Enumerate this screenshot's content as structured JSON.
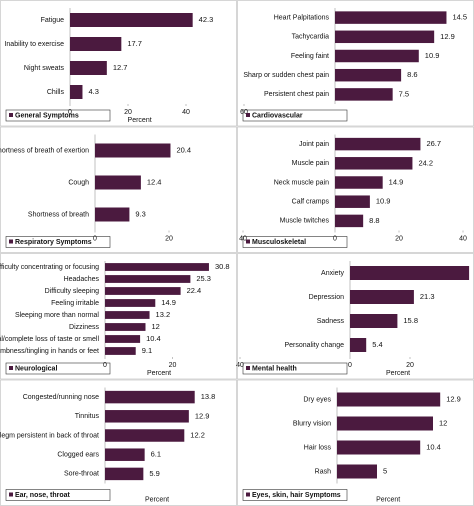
{
  "chart_data": [
    {
      "type": "bar",
      "horizontal": true,
      "title": "General Symptoms",
      "categories": [
        "Fatigue",
        "Inability to exercise",
        "Night sweats",
        "Chills"
      ],
      "values": [
        42.3,
        17.7,
        12.7,
        4.3
      ],
      "color": "#4b1a3f",
      "xlim": [
        0,
        60
      ],
      "xticks": [
        0,
        20,
        40,
        60
      ],
      "xlabel": "Percent"
    },
    {
      "type": "bar",
      "horizontal": true,
      "title": "Cardiovascular",
      "categories": [
        "Heart Palpitations",
        "Tachycardia",
        "Feeling faint",
        "Sharp or sudden chest pain",
        "Persistent chest pain"
      ],
      "values": [
        14.5,
        12.9,
        10.9,
        8.6,
        7.5
      ],
      "color": "#4b1a3f",
      "xlim": [
        0,
        16
      ]
    },
    {
      "type": "bar",
      "horizontal": true,
      "title": "Respiratory Symptoms",
      "categories": [
        "Shortness of breath of exertion",
        "Cough",
        "Shortness of breath"
      ],
      "values": [
        20.4,
        12.4,
        9.3
      ],
      "color": "#4b1a3f",
      "xlim": [
        0,
        40
      ],
      "xticks": [
        0,
        20,
        40
      ]
    },
    {
      "type": "bar",
      "horizontal": true,
      "title": "Musculoskeletal",
      "categories": [
        "Joint pain",
        "Muscle pain",
        "Neck muscle pain",
        "Calf cramps",
        "Muscle twitches"
      ],
      "values": [
        26.7,
        24.2,
        14.9,
        10.9,
        8.8
      ],
      "color": "#4b1a3f",
      "xlim": [
        0,
        40
      ],
      "xticks": [
        0,
        20,
        40
      ]
    },
    {
      "type": "bar",
      "horizontal": true,
      "title": "Neurological",
      "categories": [
        "Difficulty concentrating or focusing",
        "Headaches",
        "Difficulty sleeping",
        "Feeling irritable",
        "Sleeping more than normal",
        "Dizziness",
        "Partial/complete loss of taste or smell",
        "Numbness/tingling in hands or feet"
      ],
      "values": [
        30.8,
        25.3,
        22.4,
        14.9,
        13.2,
        12,
        10.4,
        9.1
      ],
      "color": "#4b1a3f",
      "xlim": [
        0,
        40
      ],
      "xticks": [
        0,
        20,
        40
      ],
      "xlabel": "Percent"
    },
    {
      "type": "bar",
      "horizontal": true,
      "title": "Mental health",
      "categories": [
        "Anxiety",
        "Depression",
        "Sadness",
        "Personality change"
      ],
      "values": [
        39.7,
        21.3,
        15.8,
        5.4
      ],
      "color": "#4b1a3f",
      "xlim": [
        0,
        40
      ],
      "xticks": [
        0,
        20
      ],
      "xlabel": "Percent"
    },
    {
      "type": "bar",
      "horizontal": true,
      "title": "Ear, nose, throat",
      "categories": [
        "Congested/running nose",
        "Tinnitus",
        "Phlegm persistent in back of throat",
        "Clogged ears",
        "Sore-throat"
      ],
      "values": [
        13.8,
        12.9,
        12.2,
        6.1,
        5.9
      ],
      "color": "#4b1a3f",
      "xlim": [
        0,
        20
      ],
      "xlabel": "Percent"
    },
    {
      "type": "bar",
      "horizontal": true,
      "title": "Eyes, skin, hair Symptoms",
      "categories": [
        "Dry eyes",
        "Blurry vision",
        "Hair loss",
        "Rash"
      ],
      "values": [
        12.9,
        12,
        10.4,
        5
      ],
      "color": "#4b1a3f",
      "xlim": [
        0,
        16
      ],
      "xlabel": "Percent"
    }
  ]
}
